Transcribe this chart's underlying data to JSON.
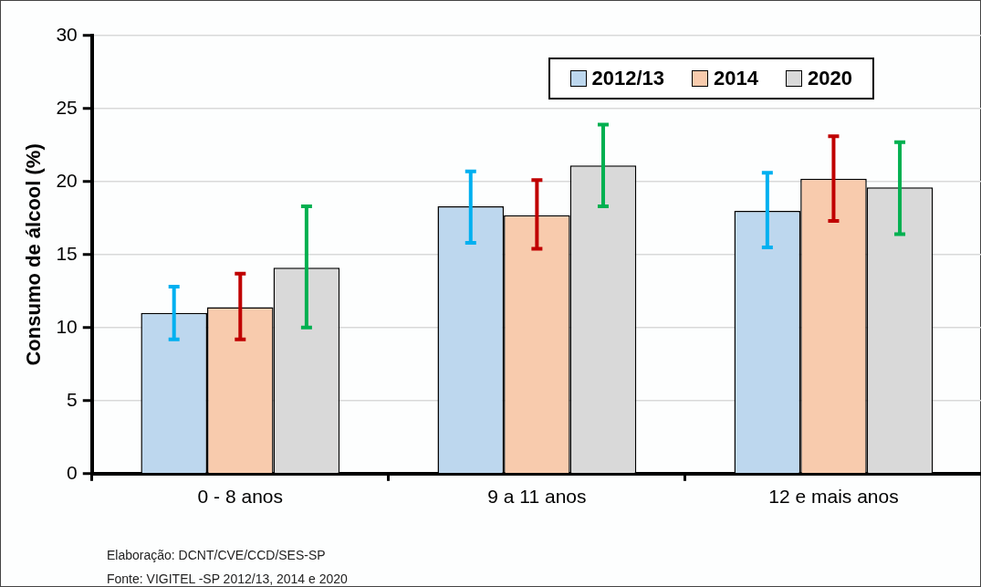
{
  "chart_data": {
    "type": "bar",
    "ylabel": "Consumo de álcool (%)",
    "categories": [
      "0 - 8 anos",
      "9 a 11 anos",
      "12 e mais anos"
    ],
    "series": [
      {
        "name": "2012/13",
        "color": "#bdd7ee",
        "values": [
          11.0,
          18.3,
          18.0
        ],
        "errors": [
          [
            9.2,
            12.8
          ],
          [
            15.8,
            20.7
          ],
          [
            15.5,
            20.6
          ]
        ]
      },
      {
        "name": "2014",
        "color": "#f8cbad",
        "values": [
          11.4,
          17.7,
          20.2
        ],
        "errors": [
          [
            9.2,
            13.7
          ],
          [
            15.4,
            20.1
          ],
          [
            17.3,
            23.1
          ]
        ]
      },
      {
        "name": "2020",
        "color": "#d9d9d9",
        "values": [
          14.1,
          21.1,
          19.6
        ],
        "errors": [
          [
            10.0,
            18.3
          ],
          [
            18.3,
            23.9
          ],
          [
            16.4,
            22.7
          ]
        ]
      }
    ],
    "ylim": [
      0,
      30
    ],
    "yticks": [
      0,
      5,
      10,
      15,
      20,
      25,
      30
    ],
    "grid": "y",
    "legend": "top right",
    "annotations": [
      "Elaboração: DCNT/CVE/CCD/SES-SP",
      "Fonte: VIGITEL -SP  2012/13, 2014 e 2020"
    ]
  }
}
